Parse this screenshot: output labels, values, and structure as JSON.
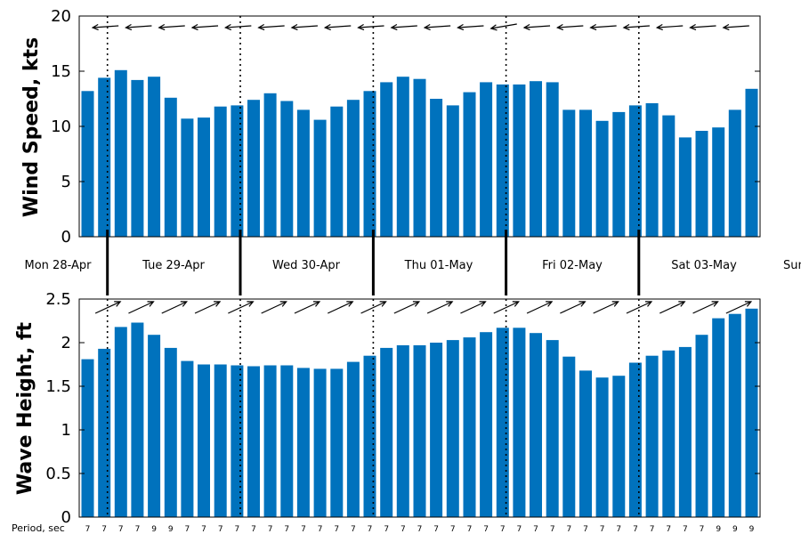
{
  "chart_data": [
    {
      "type": "bar",
      "ylabel": "Wind Speed, kts",
      "ylim": [
        0,
        20
      ],
      "yticks": [
        "0",
        "5",
        "10",
        "15",
        "20"
      ],
      "bar_color": "#0072BD",
      "values": [
        13.2,
        14.4,
        15.1,
        14.2,
        14.5,
        12.6,
        10.7,
        10.8,
        11.8,
        11.9,
        12.4,
        13.0,
        12.3,
        11.5,
        10.6,
        11.8,
        12.4,
        13.2,
        14.0,
        14.5,
        14.3,
        12.5,
        11.9,
        13.1,
        14.0,
        13.8,
        13.8,
        14.1,
        14.0,
        11.5,
        11.5,
        10.5,
        11.3,
        11.9,
        12.1,
        11.0,
        9.0,
        9.6,
        9.9,
        11.5,
        13.4
      ],
      "arrows": "direction arrows pointing west-northwest",
      "grid": false
    },
    {
      "type": "bar",
      "ylabel": "Wave Height, ft",
      "ylim": [
        0,
        2.5
      ],
      "yticks": [
        "0",
        "0.5",
        "1",
        "1.5",
        "2",
        "2.5"
      ],
      "bar_color": "#0072BD",
      "values": [
        1.81,
        1.93,
        2.18,
        2.23,
        2.09,
        1.94,
        1.79,
        1.75,
        1.75,
        1.74,
        1.73,
        1.74,
        1.74,
        1.71,
        1.7,
        1.7,
        1.78,
        1.85,
        1.94,
        1.97,
        1.97,
        2.0,
        2.03,
        2.06,
        2.12,
        2.17,
        2.17,
        2.11,
        2.03,
        1.84,
        1.68,
        1.6,
        1.62,
        1.77,
        1.85,
        1.91,
        1.95,
        2.09,
        2.28,
        2.33,
        2.39
      ],
      "arrows": "direction arrows pointing east-northeast",
      "grid": false,
      "period_label": "Period, sec",
      "periods": [
        "7",
        "7",
        "7",
        "7",
        "9",
        "9",
        "7",
        "7",
        "7",
        "7",
        "7",
        "7",
        "7",
        "7",
        "7",
        "7",
        "7",
        "7",
        "7",
        "7",
        "7",
        "7",
        "7",
        "7",
        "7",
        "7",
        "7",
        "7",
        "7",
        "7",
        "7",
        "7",
        "7",
        "7",
        "7",
        "7",
        "7",
        "7",
        "9",
        "9",
        "9"
      ]
    }
  ],
  "days": [
    "Mon 28-Apr",
    "Tue 29-Apr",
    "Wed 30-Apr",
    "Thu 01-May",
    "Fri 02-May",
    "Sat 03-May",
    "Sun"
  ],
  "colors": {
    "bar": "#0072BD",
    "axis": "#000000"
  }
}
